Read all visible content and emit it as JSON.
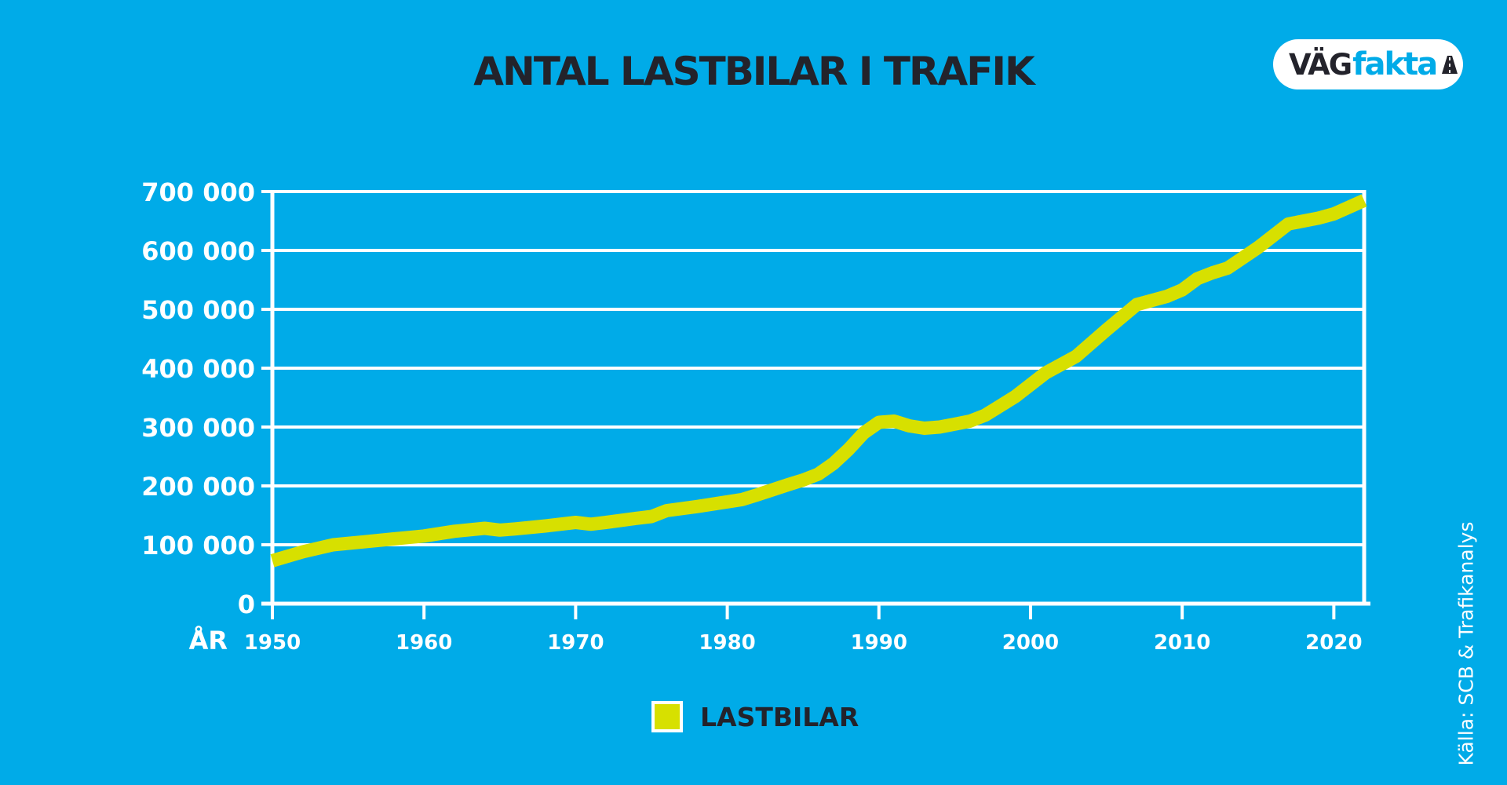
{
  "header": {
    "title": "ANTAL LASTBILAR I TRAFIK"
  },
  "logo": {
    "part1": "VÄG",
    "part2": "fakta",
    "part1_color": "#23232b",
    "part2_color": "#00abe8"
  },
  "source": {
    "text": "Källa: SCB & Trafikanalys"
  },
  "colors": {
    "background": "#00abe8",
    "line": "#d7e000",
    "grid": "#ffffff",
    "text_dark": "#23232b",
    "text_light": "#ffffff"
  },
  "chart_data": {
    "type": "line",
    "title": "ANTAL LASTBILAR I TRAFIK",
    "xlabel": "ÅR",
    "ylabel": "",
    "xlim": [
      1950,
      2022
    ],
    "ylim": [
      0,
      700000
    ],
    "x_ticks": [
      1950,
      1960,
      1970,
      1980,
      1990,
      2000,
      2010,
      2020
    ],
    "y_ticks": [
      0,
      100000,
      200000,
      300000,
      400000,
      500000,
      600000,
      700000
    ],
    "y_tick_labels": [
      "0",
      "100 000",
      "200 000",
      "300 000",
      "400 000",
      "500 000",
      "600 000",
      "700 000"
    ],
    "grid": true,
    "legend": "bottom-center",
    "series": [
      {
        "name": "LASTBILAR",
        "color": "#d7e000",
        "x": [
          1950,
          1952,
          1954,
          1956,
          1958,
          1960,
          1962,
          1964,
          1965,
          1966,
          1968,
          1970,
          1971,
          1972,
          1974,
          1975,
          1976,
          1978,
          1980,
          1981,
          1982,
          1984,
          1985,
          1986,
          1987,
          1988,
          1989,
          1990,
          1991,
          1992,
          1993,
          1994,
          1995,
          1996,
          1997,
          1999,
          2001,
          2003,
          2005,
          2007,
          2009,
          2010,
          2011,
          2012,
          2013,
          2015,
          2017,
          2019,
          2020,
          2022
        ],
        "values": [
          73000,
          88000,
          100000,
          105000,
          110000,
          115000,
          123000,
          128000,
          125000,
          127000,
          132000,
          138000,
          135000,
          138000,
          145000,
          148000,
          158000,
          165000,
          173000,
          177000,
          185000,
          202000,
          210000,
          220000,
          238000,
          262000,
          290000,
          308000,
          310000,
          302000,
          298000,
          300000,
          305000,
          310000,
          320000,
          352000,
          392000,
          420000,
          465000,
          508000,
          522000,
          533000,
          552000,
          562000,
          570000,
          605000,
          645000,
          655000,
          662000,
          685000
        ]
      }
    ]
  }
}
